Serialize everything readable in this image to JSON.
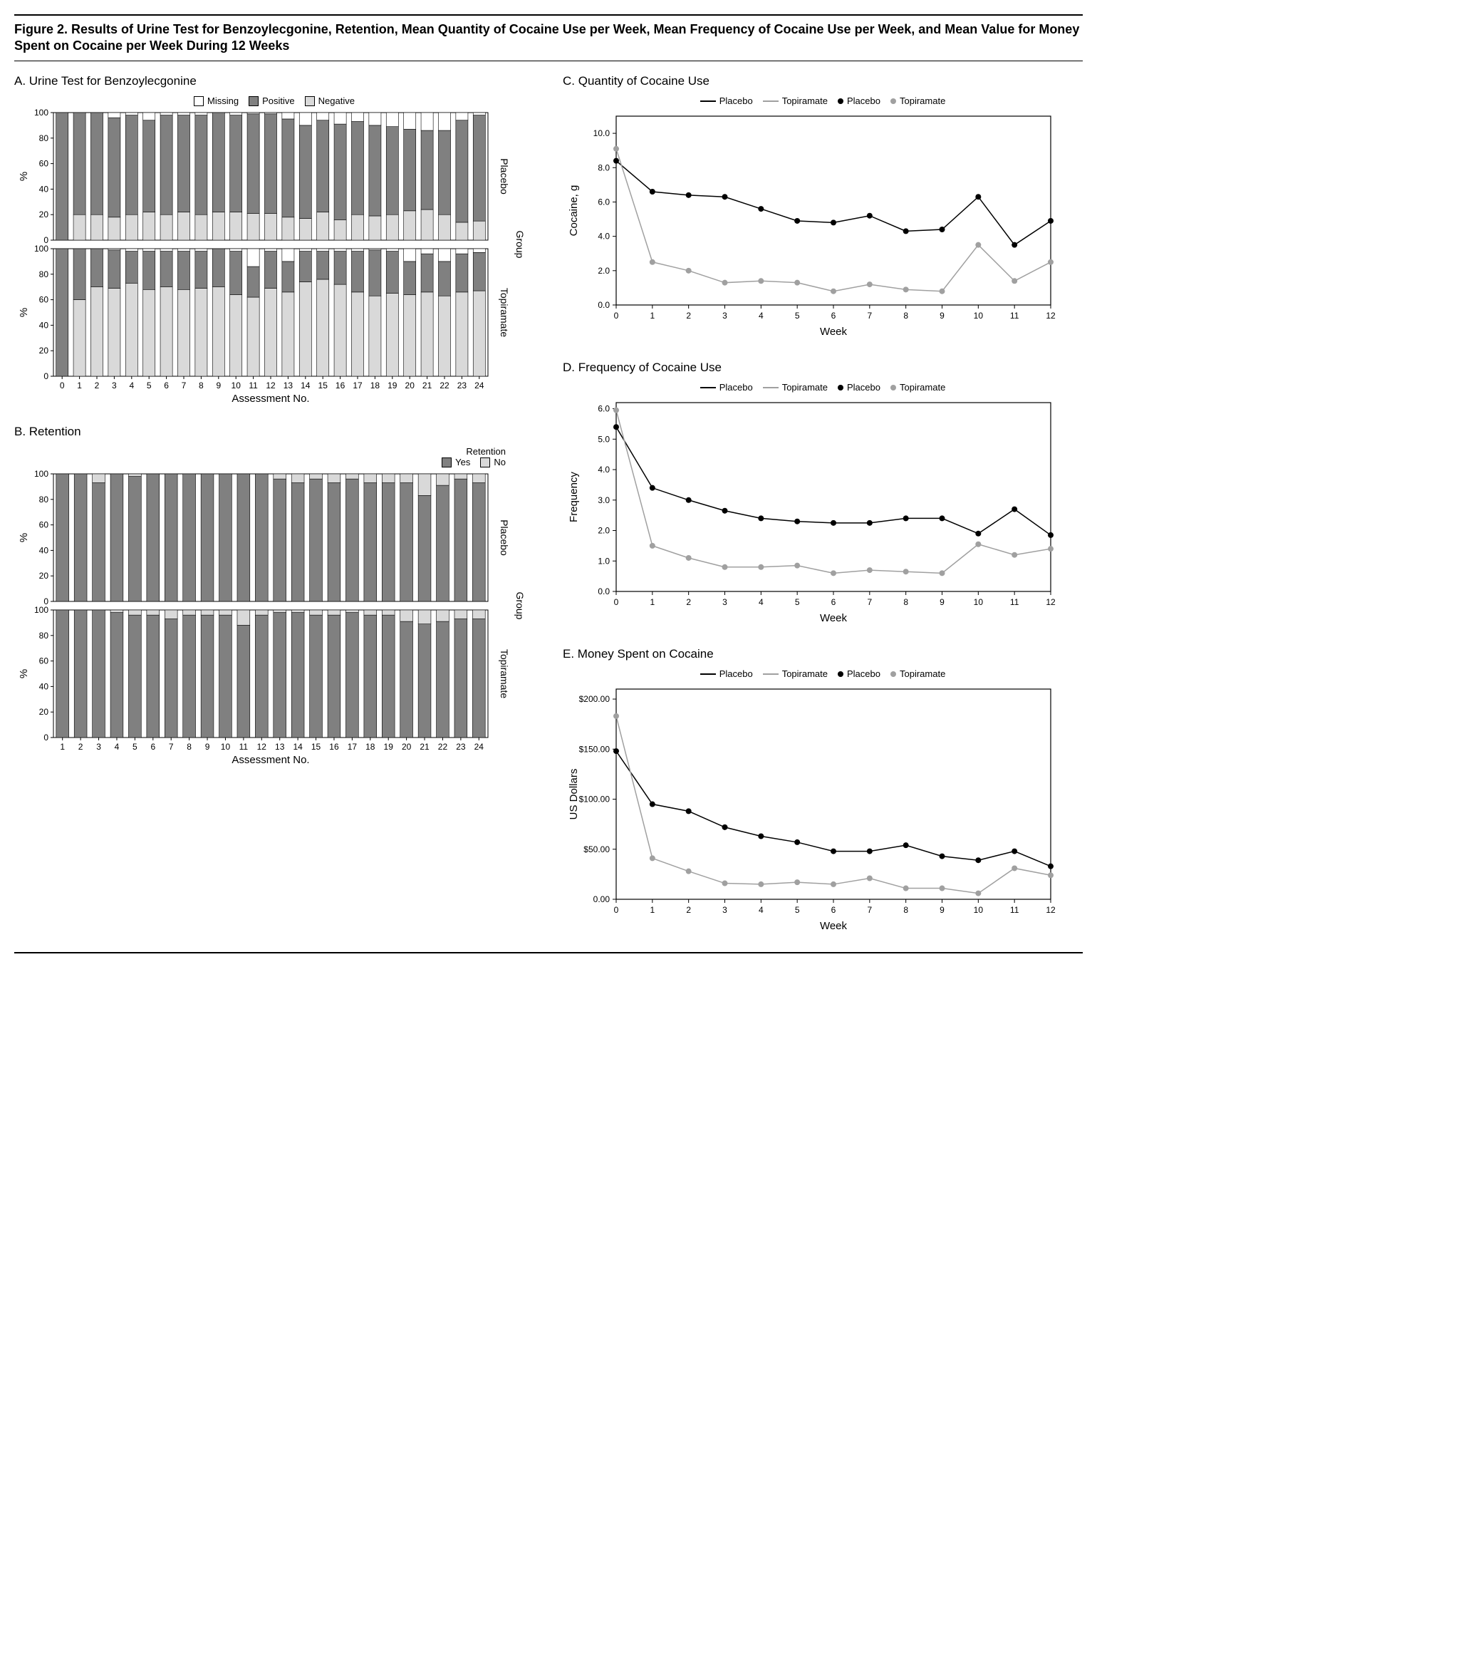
{
  "title": "Figure 2. Results of Urine Test for Benzoylecgonine, Retention, Mean Quantity of Cocaine Use per Week, Mean Frequency of Cocaine Use per Week, and Mean Value for Money Spent on Cocaine per Week During 12 Weeks",
  "colors": {
    "missing": "#ffffff",
    "positive": "#808080",
    "negative": "#d9d9d9",
    "yes": "#808080",
    "no": "#d9d9d9",
    "placebo_line": "#000000",
    "topiramate_line": "#a0a0a0",
    "placebo_marker": "#000000",
    "topiramate_marker": "#a0a0a0",
    "axis": "#000000",
    "plot_border": "#000000",
    "background": "#ffffff"
  },
  "fonts": {
    "title_size_pt": 14,
    "panel_title_size_pt": 13,
    "axis_label_pt": 12,
    "tick_pt": 10
  },
  "panelA": {
    "title": "A. Urine Test for Benzoylecgonine",
    "type": "stacked-bar",
    "x_label": "Assessment No.",
    "y_label": "%",
    "y_ticks": [
      0,
      20,
      40,
      60,
      80,
      100
    ],
    "ylim": [
      0,
      100
    ],
    "groups_label": "Group",
    "group_names": [
      "Placebo",
      "Topiramate"
    ],
    "categories": [
      0,
      1,
      2,
      3,
      4,
      5,
      6,
      7,
      8,
      9,
      10,
      11,
      12,
      13,
      14,
      15,
      16,
      17,
      18,
      19,
      20,
      21,
      22,
      23,
      24
    ],
    "legend": [
      "Missing",
      "Positive",
      "Negative"
    ],
    "bar_width": 0.7,
    "data": {
      "Placebo": {
        "negative": [
          0,
          20,
          20,
          18,
          20,
          22,
          20,
          22,
          20,
          22,
          22,
          21,
          21,
          18,
          17,
          22,
          16,
          20,
          19,
          20,
          23,
          24,
          20,
          14,
          15
        ],
        "positive": [
          100,
          80,
          80,
          78,
          78,
          72,
          78,
          76,
          78,
          78,
          76,
          78,
          78,
          77,
          73,
          72,
          75,
          73,
          71,
          69,
          64,
          62,
          66,
          80,
          83
        ],
        "missing": [
          0,
          0,
          0,
          4,
          2,
          6,
          2,
          2,
          2,
          0,
          2,
          1,
          1,
          5,
          10,
          6,
          9,
          7,
          10,
          11,
          13,
          14,
          14,
          6,
          2
        ]
      },
      "Topiramate": {
        "negative": [
          0,
          60,
          70,
          69,
          73,
          68,
          70,
          68,
          69,
          70,
          64,
          62,
          69,
          66,
          74,
          76,
          72,
          66,
          63,
          65,
          64,
          66,
          63,
          66,
          67
        ],
        "positive": [
          100,
          40,
          30,
          30,
          25,
          30,
          28,
          30,
          29,
          30,
          34,
          24,
          29,
          24,
          24,
          22,
          26,
          32,
          36,
          33,
          26,
          30,
          27,
          30,
          30
        ],
        "missing": [
          0,
          0,
          0,
          1,
          2,
          2,
          2,
          2,
          2,
          0,
          2,
          14,
          2,
          10,
          2,
          2,
          2,
          2,
          1,
          2,
          10,
          4,
          10,
          4,
          3
        ]
      }
    }
  },
  "panelB": {
    "title": "B. Retention",
    "type": "stacked-bar",
    "x_label": "Assessment No.",
    "y_label": "%",
    "y_ticks": [
      0,
      20,
      40,
      60,
      80,
      100
    ],
    "ylim": [
      0,
      100
    ],
    "groups_label": "Group",
    "group_names": [
      "Placebo",
      "Topiramate"
    ],
    "categories": [
      1,
      2,
      3,
      4,
      5,
      6,
      7,
      8,
      9,
      10,
      11,
      12,
      13,
      14,
      15,
      16,
      17,
      18,
      19,
      20,
      21,
      22,
      23,
      24
    ],
    "legend_title": "Retention",
    "legend": [
      "Yes",
      "No"
    ],
    "bar_width": 0.7,
    "data": {
      "Placebo": {
        "yes": [
          100,
          100,
          93,
          100,
          98,
          100,
          100,
          100,
          100,
          100,
          100,
          100,
          96,
          93,
          96,
          93,
          96,
          93,
          93,
          93,
          83,
          91,
          96,
          93
        ],
        "no": [
          0,
          0,
          7,
          0,
          2,
          0,
          0,
          0,
          0,
          0,
          0,
          0,
          4,
          7,
          4,
          7,
          4,
          7,
          7,
          7,
          17,
          9,
          4,
          7
        ]
      },
      "Topiramate": {
        "yes": [
          100,
          100,
          100,
          98,
          96,
          96,
          93,
          96,
          96,
          96,
          88,
          96,
          98,
          98,
          96,
          96,
          98,
          96,
          96,
          91,
          89,
          91,
          93,
          93
        ],
        "no": [
          0,
          0,
          0,
          2,
          4,
          4,
          7,
          4,
          4,
          4,
          12,
          4,
          2,
          2,
          4,
          4,
          2,
          4,
          4,
          9,
          11,
          9,
          7,
          7
        ]
      }
    }
  },
  "panelC": {
    "title": "C. Quantity of Cocaine Use",
    "type": "line",
    "x_label": "Week",
    "y_label": "Cocaine, g",
    "x_ticks": [
      0,
      1,
      2,
      3,
      4,
      5,
      6,
      7,
      8,
      9,
      10,
      11,
      12
    ],
    "xlim": [
      0,
      12
    ],
    "y_ticks": [
      0,
      2,
      4,
      6,
      8,
      10
    ],
    "ylim": [
      0,
      11
    ],
    "legend_lines": [
      "Placebo",
      "Topiramate"
    ],
    "legend_markers": [
      "Placebo",
      "Topiramate"
    ],
    "line_width": 1.5,
    "marker_size": 4,
    "series": {
      "Placebo": [
        8.4,
        6.6,
        6.4,
        6.3,
        5.6,
        4.9,
        4.8,
        5.2,
        4.3,
        4.4,
        6.3,
        3.5,
        4.9
      ],
      "Topiramate": [
        9.1,
        2.5,
        2.0,
        1.3,
        1.4,
        1.3,
        0.8,
        1.2,
        0.9,
        0.8,
        3.5,
        1.4,
        2.5
      ]
    }
  },
  "panelD": {
    "title": "D. Frequency of Cocaine Use",
    "type": "line",
    "x_label": "Week",
    "y_label": "Frequency",
    "x_ticks": [
      0,
      1,
      2,
      3,
      4,
      5,
      6,
      7,
      8,
      9,
      10,
      11,
      12
    ],
    "xlim": [
      0,
      12
    ],
    "y_ticks": [
      0,
      1,
      2,
      3,
      4,
      5,
      6
    ],
    "ylim": [
      0,
      6.2
    ],
    "legend_lines": [
      "Placebo",
      "Topiramate"
    ],
    "legend_markers": [
      "Placebo",
      "Topiramate"
    ],
    "line_width": 1.5,
    "marker_size": 4,
    "series": {
      "Placebo": [
        5.4,
        3.4,
        3.0,
        2.65,
        2.4,
        2.3,
        2.25,
        2.25,
        2.4,
        2.4,
        1.9,
        2.7,
        1.85
      ],
      "Topiramate": [
        5.95,
        1.5,
        1.1,
        0.8,
        0.8,
        0.85,
        0.6,
        0.7,
        0.65,
        0.6,
        1.55,
        1.2,
        1.4
      ]
    }
  },
  "panelE": {
    "title": "E. Money Spent on Cocaine",
    "type": "line",
    "x_label": "Week",
    "y_label": "US Dollars",
    "x_ticks": [
      0,
      1,
      2,
      3,
      4,
      5,
      6,
      7,
      8,
      9,
      10,
      11,
      12
    ],
    "xlim": [
      0,
      12
    ],
    "y_ticks": [
      0,
      50,
      100,
      150,
      200
    ],
    "y_tick_labels": [
      "0.00",
      "$50.00",
      "$100.00",
      "$150.00",
      "$200.00"
    ],
    "ylim": [
      0,
      210
    ],
    "legend_lines": [
      "Placebo",
      "Topiramate"
    ],
    "legend_markers": [
      "Placebo",
      "Topiramate"
    ],
    "line_width": 1.5,
    "marker_size": 4,
    "series": {
      "Placebo": [
        148,
        95,
        88,
        72,
        63,
        57,
        48,
        48,
        54,
        43,
        39,
        48,
        33
      ],
      "Topiramate": [
        183,
        41,
        28,
        16,
        15,
        17,
        15,
        21,
        11,
        11,
        6,
        31,
        24
      ]
    }
  }
}
